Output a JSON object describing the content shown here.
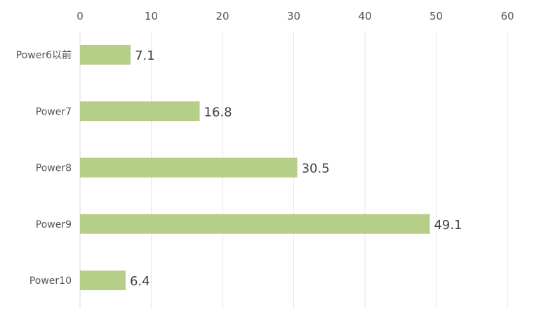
{
  "chart_data": {
    "type": "bar",
    "orientation": "horizontal",
    "categories": [
      "Power6以前",
      "Power7",
      "Power8",
      "Power9",
      "Power10"
    ],
    "values": [
      7.1,
      16.8,
      30.5,
      49.1,
      6.4
    ],
    "value_labels": [
      "7.1",
      "16.8",
      "30.5",
      "49.1",
      "6.4"
    ],
    "xlim": [
      0,
      60
    ],
    "ticks": [
      0,
      10,
      20,
      30,
      40,
      50,
      60
    ],
    "tick_labels": [
      "0",
      "10",
      "20",
      "30",
      "40",
      "50",
      "60"
    ],
    "axis_position": "top",
    "grid": true,
    "legend": "none",
    "title": "",
    "xlabel": "",
    "ylabel": "",
    "colors": {
      "bar": "#b5cf88",
      "grid": "#e6e6e6",
      "text": "#555555"
    }
  }
}
